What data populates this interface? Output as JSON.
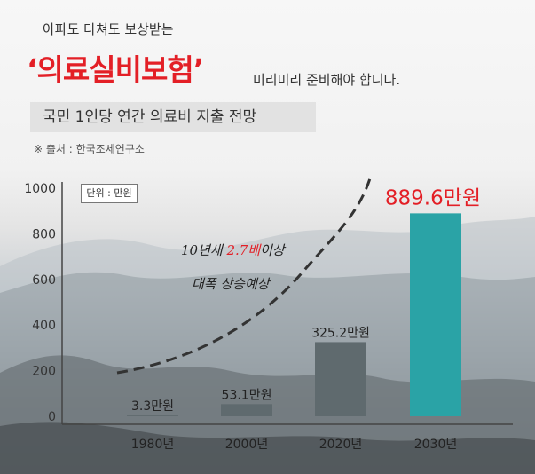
{
  "header": {
    "kicker": "아파도 다쳐도 보상받는",
    "headline": "‘의료실비보험’",
    "tagline": "미리미리 준비해야 합니다.",
    "subtitle": "국민 1인당 연간 의료비 지출 전망",
    "source": "※ 출처 : 한국조세연구소"
  },
  "colors": {
    "accent": "#e31f26",
    "bar": "#5f6a6e",
    "highlight_bar": "#2aa3a6"
  },
  "chart_data": {
    "type": "bar",
    "categories": [
      "1980년",
      "2000년",
      "2020년",
      "2030년"
    ],
    "values": [
      3.3,
      53.1,
      325.2,
      889.6
    ],
    "value_labels": [
      "3.3만원",
      "53.1만원",
      "325.2만원",
      "889.6만원"
    ],
    "ylim": [
      0,
      1000
    ],
    "yticks": [
      0,
      200,
      400,
      600,
      800,
      1000
    ],
    "unit_label": "단위 : 만원",
    "highlight_index": 3,
    "grid": false,
    "annotation": {
      "line1_prefix": "10년새 ",
      "line1_highlight": "2.7배",
      "line1_suffix": "이상",
      "line2": "대폭 상승예상"
    }
  }
}
